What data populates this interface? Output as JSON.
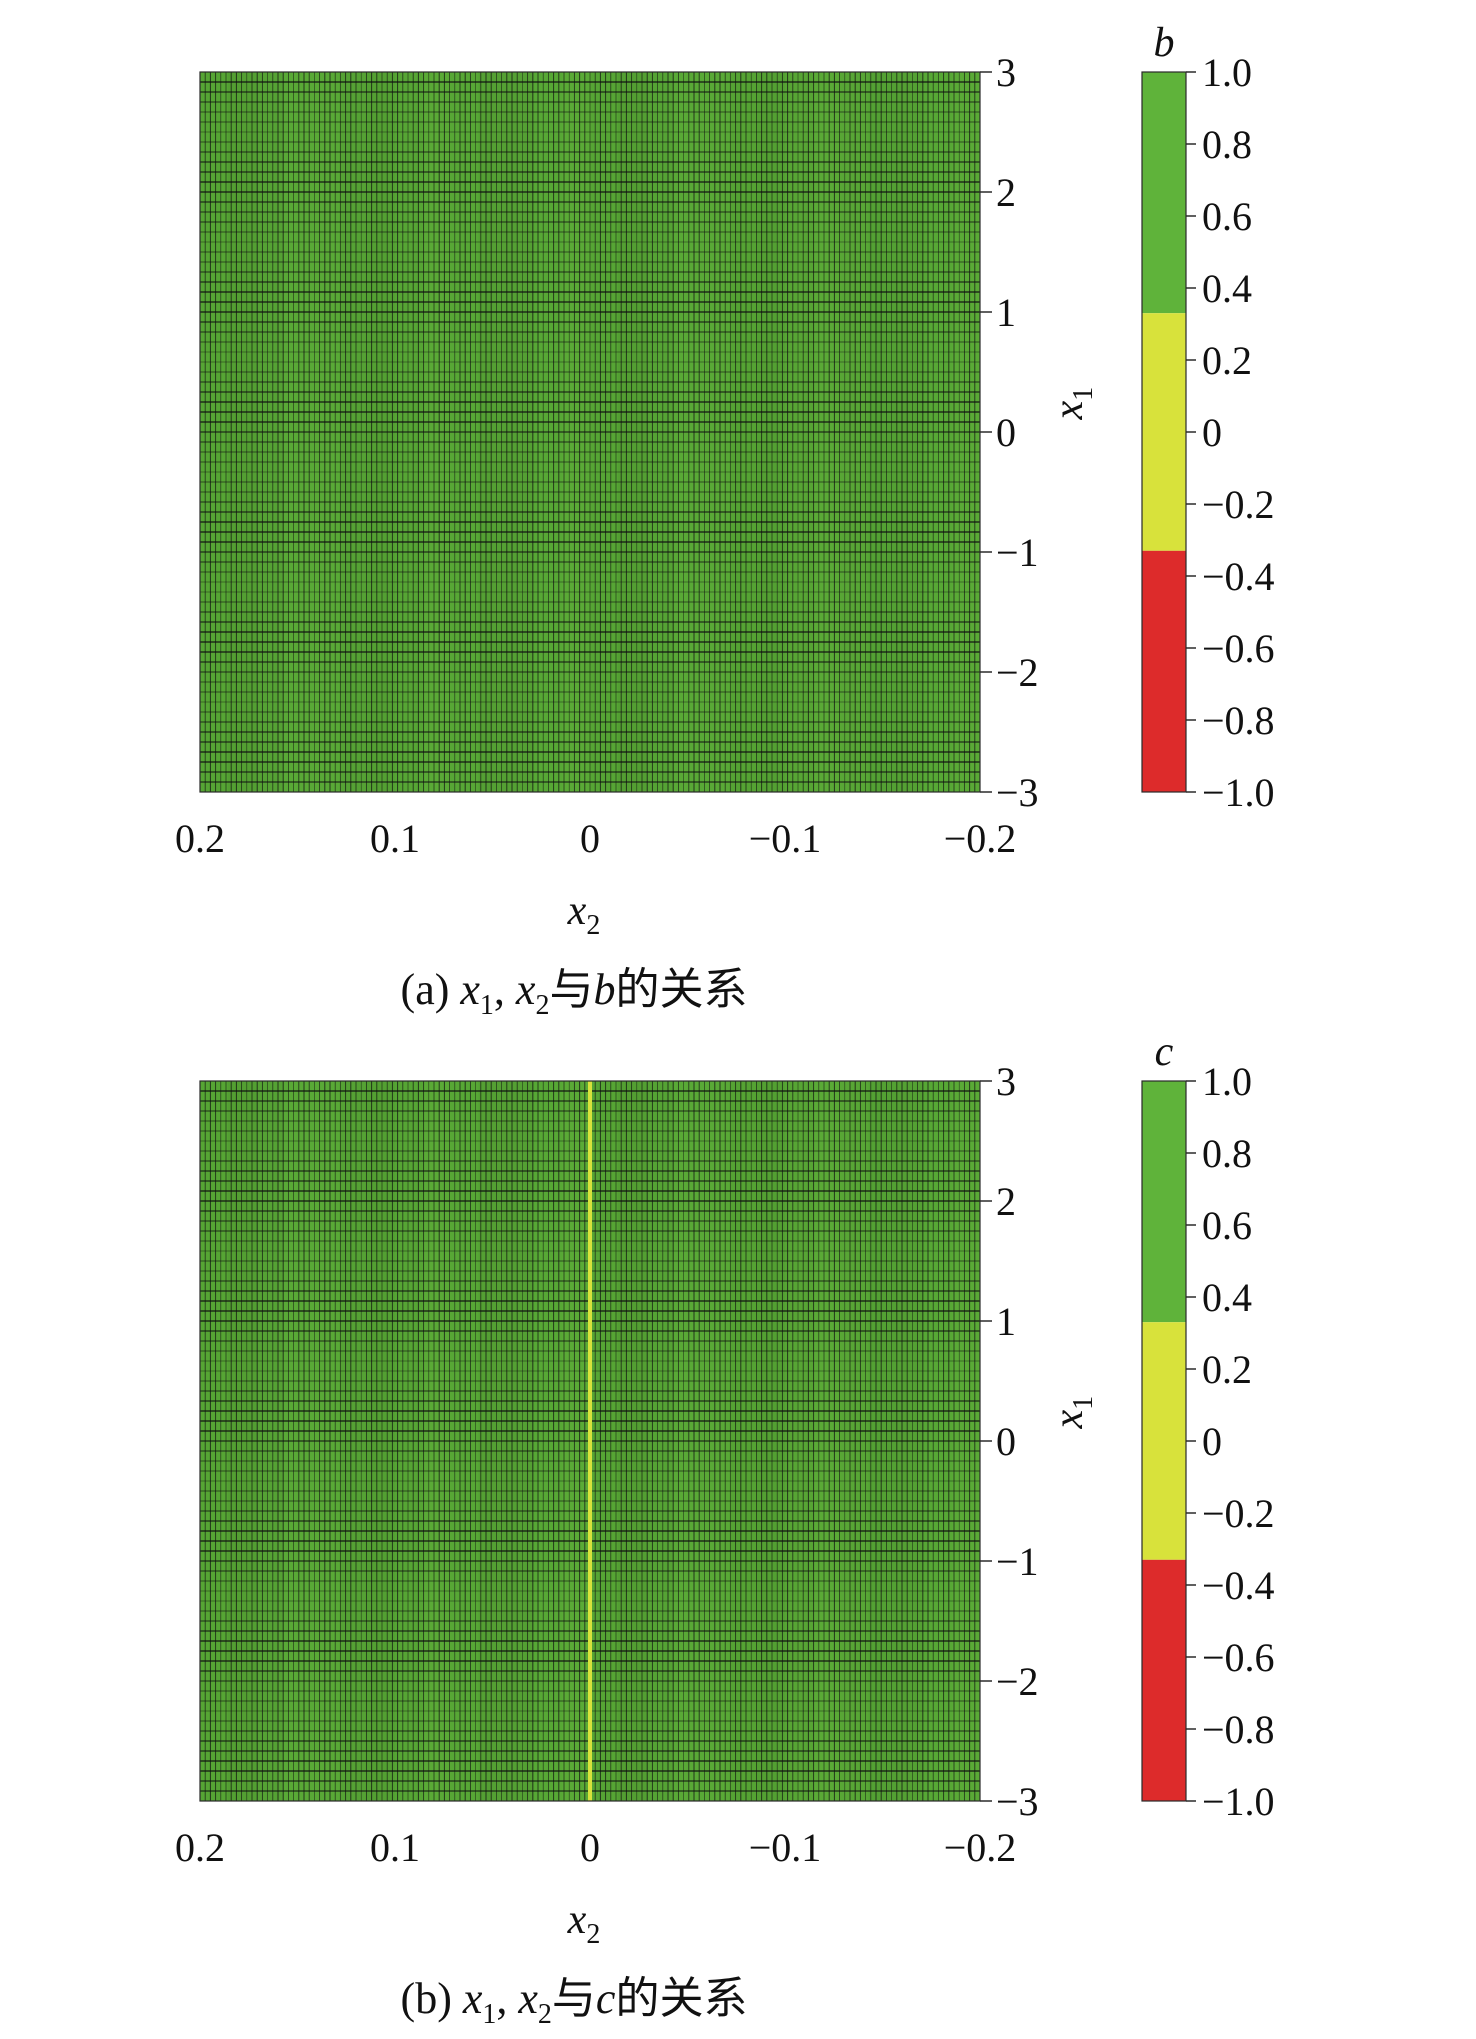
{
  "colors": {
    "green": "#5fb33a",
    "yellow": "#d8e23b",
    "red": "#dd2b2b",
    "grid": "#101010"
  },
  "chart_data": [
    {
      "type": "heatmap",
      "panel": "a",
      "caption": {
        "prefix": "(a) ",
        "x1": "x",
        "x1_sub": "1",
        "sep": ", ",
        "x2": "x",
        "x2_sub": "2",
        "mid": "与",
        "var": "b",
        "suffix": "的关系"
      },
      "xlabel": {
        "base": "x",
        "sub": "2"
      },
      "ylabel": {
        "base": "x",
        "sub": "1"
      },
      "xlim": [
        0.2,
        -0.2
      ],
      "ylim": [
        -3,
        3
      ],
      "xticks": [
        0.2,
        0.1,
        0,
        -0.1,
        -0.2
      ],
      "xtick_labels": [
        "0.2",
        "0.1",
        "0",
        "−0.1",
        "−0.2"
      ],
      "yticks": [
        3,
        2,
        1,
        0,
        -1,
        -2,
        -3
      ],
      "ytick_labels": [
        "3",
        "2",
        "1",
        "0",
        "−1",
        "−2",
        "−3"
      ],
      "colorbar": {
        "title": "b",
        "range": [
          -1,
          1
        ],
        "bands": [
          {
            "from": 0.33,
            "to": 1.0,
            "color": "#5fb33a"
          },
          {
            "from": -0.33,
            "to": 0.33,
            "color": "#d8e23b"
          },
          {
            "from": -1.0,
            "to": -0.33,
            "color": "#dd2b2b"
          }
        ],
        "ticks": [
          1.0,
          0.8,
          0.6,
          0.4,
          0.2,
          0,
          -0.2,
          -0.4,
          -0.6,
          -0.8,
          -1.0
        ],
        "tick_labels": [
          "1.0",
          "0.8",
          "0.6",
          "0.4",
          "0.2",
          "0",
          "−0.2",
          "−0.4",
          "−0.6",
          "−0.8",
          "−1.0"
        ]
      },
      "field": {
        "value": 1,
        "note_band": "green"
      },
      "special_lines": []
    },
    {
      "type": "heatmap",
      "panel": "b",
      "caption": {
        "prefix": "(b) ",
        "x1": "x",
        "x1_sub": "1",
        "sep": ", ",
        "x2": "x",
        "x2_sub": "2",
        "mid": "与",
        "var": "c",
        "suffix": "的关系"
      },
      "xlabel": {
        "base": "x",
        "sub": "2"
      },
      "ylabel": {
        "base": "x",
        "sub": "1"
      },
      "xlim": [
        0.2,
        -0.2
      ],
      "ylim": [
        -3,
        3
      ],
      "xticks": [
        0.2,
        0.1,
        0,
        -0.1,
        -0.2
      ],
      "xtick_labels": [
        "0.2",
        "0.1",
        "0",
        "−0.1",
        "−0.2"
      ],
      "yticks": [
        3,
        2,
        1,
        0,
        -1,
        -2,
        -3
      ],
      "ytick_labels": [
        "3",
        "2",
        "1",
        "0",
        "−1",
        "−2",
        "−3"
      ],
      "colorbar": {
        "title": "c",
        "range": [
          -1,
          1
        ],
        "bands": [
          {
            "from": 0.33,
            "to": 1.0,
            "color": "#5fb33a"
          },
          {
            "from": -0.33,
            "to": 0.33,
            "color": "#d8e23b"
          },
          {
            "from": -1.0,
            "to": -0.33,
            "color": "#dd2b2b"
          }
        ],
        "ticks": [
          1.0,
          0.8,
          0.6,
          0.4,
          0.2,
          0,
          -0.2,
          -0.4,
          -0.6,
          -0.8,
          -1.0
        ],
        "tick_labels": [
          "1.0",
          "0.8",
          "0.6",
          "0.4",
          "0.2",
          "0",
          "−0.2",
          "−0.4",
          "−0.6",
          "−0.8",
          "−1.0"
        ]
      },
      "field": {
        "value": 1,
        "note_band": "green"
      },
      "special_lines": [
        {
          "x2": 0,
          "value": 0,
          "band": "yellow"
        }
      ]
    }
  ]
}
